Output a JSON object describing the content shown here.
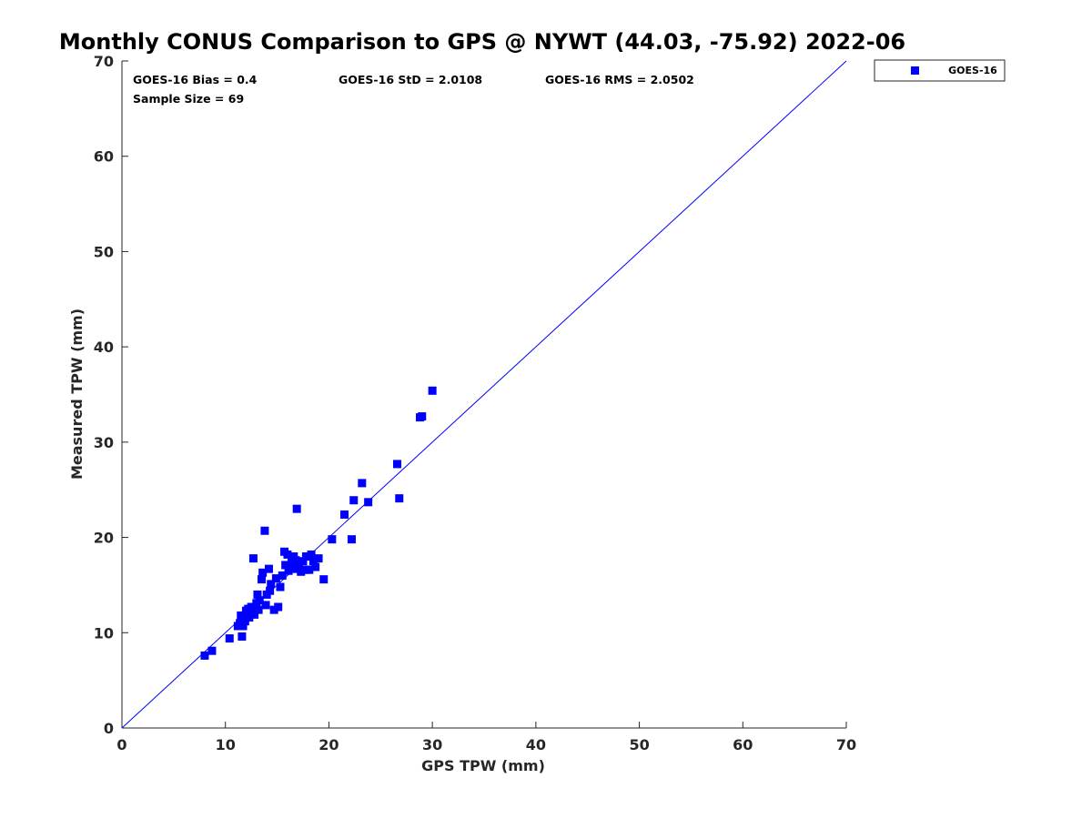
{
  "chart_data": {
    "type": "scatter",
    "title": "Monthly CONUS Comparison to GPS @ NYWT (44.03, -75.92) 2022-06",
    "xlabel": "GPS TPW (mm)",
    "ylabel": "Measured TPW (mm)",
    "xlim": [
      0,
      70
    ],
    "ylim": [
      0,
      70
    ],
    "xticks": [
      "0",
      "10",
      "20",
      "30",
      "40",
      "50",
      "60",
      "70"
    ],
    "yticks": [
      "0",
      "10",
      "20",
      "30",
      "40",
      "50",
      "60",
      "70"
    ],
    "grid": false,
    "legend": "outside-top-right",
    "stats": {
      "bias": "GOES-16 Bias = 0.4",
      "std": "GOES-16 StD = 2.0108",
      "rms": "GOES-16 RMS = 2.0502",
      "sample": "Sample Size = 69"
    },
    "reference_line": {
      "x": [
        0,
        70
      ],
      "y": [
        0,
        70
      ],
      "color": "#0000ff"
    },
    "series": [
      {
        "name": "GOES-16",
        "color": "#0000ff",
        "marker": "square",
        "points": [
          [
            8.0,
            7.6
          ],
          [
            8.7,
            8.1
          ],
          [
            10.4,
            9.4
          ],
          [
            11.2,
            10.7
          ],
          [
            11.5,
            11.8
          ],
          [
            11.6,
            9.6
          ],
          [
            11.7,
            10.7
          ],
          [
            11.9,
            11.2
          ],
          [
            12.1,
            11.9
          ],
          [
            12.2,
            12.5
          ],
          [
            12.3,
            11.6
          ],
          [
            12.5,
            12.7
          ],
          [
            12.6,
            12.1
          ],
          [
            12.8,
            11.9
          ],
          [
            12.9,
            12.6
          ],
          [
            13.1,
            14.0
          ],
          [
            13.2,
            12.4
          ],
          [
            13.3,
            13.4
          ],
          [
            13.5,
            15.6
          ],
          [
            13.6,
            16.3
          ],
          [
            13.9,
            12.9
          ],
          [
            14.0,
            14.0
          ],
          [
            14.2,
            16.7
          ],
          [
            14.4,
            15.1
          ],
          [
            14.7,
            12.4
          ],
          [
            14.9,
            15.7
          ],
          [
            15.1,
            12.7
          ],
          [
            15.3,
            14.8
          ],
          [
            15.7,
            18.5
          ],
          [
            15.8,
            17.1
          ],
          [
            16.0,
            18.2
          ],
          [
            16.2,
            16.9
          ],
          [
            16.4,
            17.4
          ],
          [
            16.6,
            18.0
          ],
          [
            16.7,
            16.7
          ],
          [
            16.8,
            17.6
          ],
          [
            16.9,
            23.0
          ],
          [
            17.1,
            16.8
          ],
          [
            17.3,
            16.4
          ],
          [
            17.5,
            17.5
          ],
          [
            17.7,
            16.6
          ],
          [
            17.8,
            18.0
          ],
          [
            18.1,
            16.6
          ],
          [
            18.3,
            18.2
          ],
          [
            18.7,
            16.9
          ],
          [
            19.0,
            17.8
          ],
          [
            19.5,
            15.6
          ],
          [
            20.3,
            19.8
          ],
          [
            21.5,
            22.4
          ],
          [
            22.2,
            19.8
          ],
          [
            22.4,
            23.9
          ],
          [
            23.2,
            25.7
          ],
          [
            23.8,
            23.7
          ],
          [
            26.6,
            27.7
          ],
          [
            26.8,
            24.1
          ],
          [
            28.8,
            32.6
          ],
          [
            29.0,
            32.7
          ],
          [
            30.0,
            35.4
          ],
          [
            12.7,
            17.8
          ],
          [
            13.8,
            20.7
          ],
          [
            11.4,
            11.0
          ],
          [
            12.0,
            12.3
          ],
          [
            12.4,
            12.2
          ],
          [
            13.0,
            13.1
          ],
          [
            14.3,
            14.4
          ],
          [
            15.5,
            16.0
          ],
          [
            17.0,
            17.2
          ],
          [
            18.5,
            17.5
          ],
          [
            16.1,
            16.5
          ]
        ]
      }
    ]
  }
}
